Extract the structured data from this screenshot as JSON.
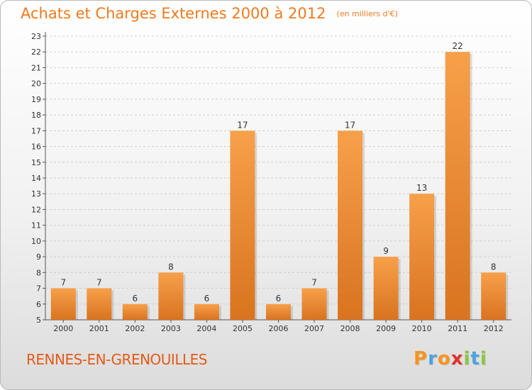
{
  "title": "Achats et Charges Externes 2000 à 2012",
  "unit": "(en milliers d'€)",
  "town": "RENNES-EN-GRENOUILLES",
  "logo": {
    "text": "Proxiti",
    "letters": [
      "P",
      "r",
      "o",
      "x",
      "i",
      "t",
      "i"
    ],
    "colors": [
      "#f7941d",
      "#4aa3df",
      "#f7941d",
      "#e4322b",
      "#8cc63f",
      "#4aa3df",
      "#8cc63f"
    ]
  },
  "colors": {
    "bar_top": "#f7a04a",
    "bar_bottom": "#d9731f",
    "title": "#f07a1e",
    "town": "#e65a18"
  },
  "chart_data": {
    "type": "bar",
    "title": "Achats et Charges Externes 2000 à 2012",
    "subtitle": "(en milliers d'€)",
    "categories": [
      "2000",
      "2001",
      "2002",
      "2003",
      "2004",
      "2005",
      "2006",
      "2007",
      "2008",
      "2009",
      "2010",
      "2011",
      "2012"
    ],
    "values": [
      7,
      7,
      6,
      8,
      6,
      17,
      6,
      7,
      17,
      9,
      13,
      22,
      8
    ],
    "ylim": [
      5,
      23
    ],
    "yticks": [
      5,
      6,
      7,
      8,
      9,
      10,
      11,
      12,
      13,
      14,
      15,
      16,
      17,
      18,
      19,
      20,
      21,
      22,
      23
    ],
    "grid": true,
    "legend": "none"
  }
}
